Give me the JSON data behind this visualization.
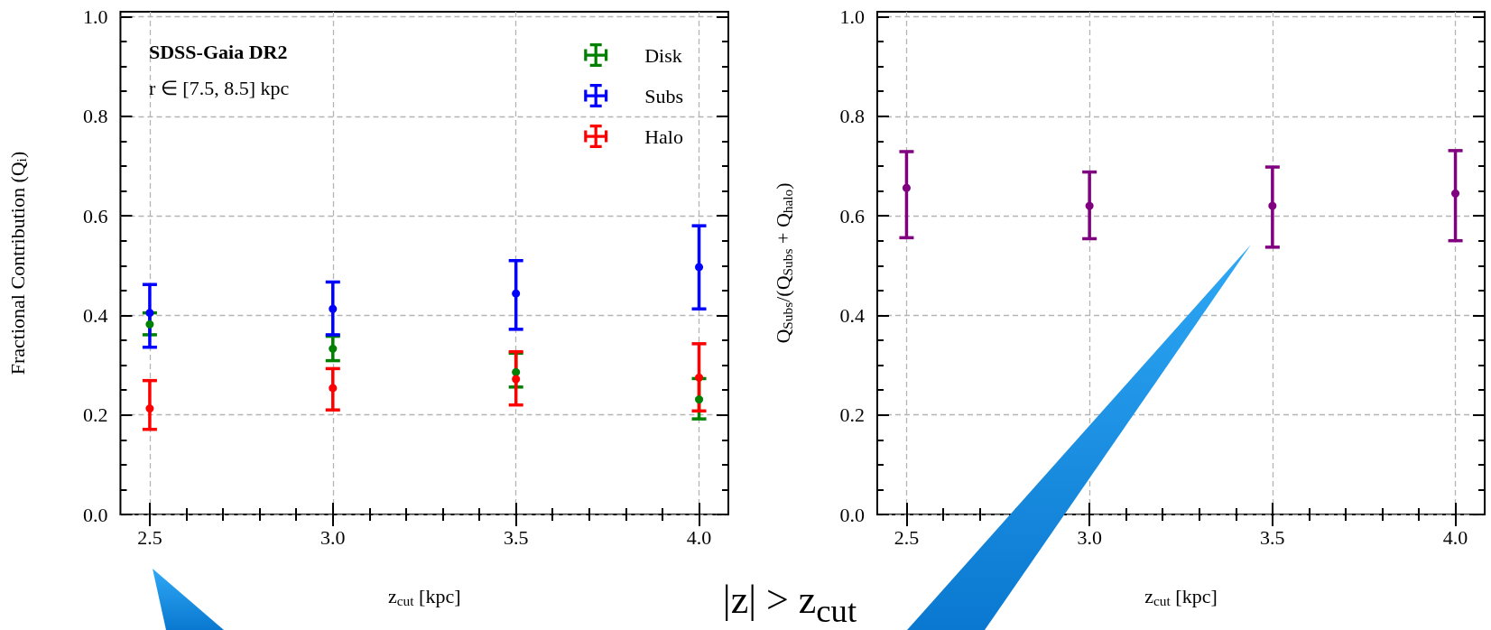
{
  "chart_data": [
    {
      "type": "scatter",
      "xlabel": "z$_{cut}$ [kpc]",
      "ylabel": "Fractional Contribution (Q$_{i}$)",
      "annotations": [
        "SDSS-Gaia DR2",
        "r ∈ [7.5, 8.5] kpc",
        "|z| > z$_{cut}$"
      ],
      "x": [
        2.5,
        3.0,
        3.5,
        4.0
      ],
      "xlim": [
        2.42,
        4.08
      ],
      "xticks": [
        {
          "value": 2.5,
          "label": "2.5"
        },
        {
          "value": 2.6,
          "label": null
        },
        {
          "value": 2.7,
          "label": null
        },
        {
          "value": 2.8,
          "label": null
        },
        {
          "value": 2.9,
          "label": null
        },
        {
          "value": 3.0,
          "label": "3.0"
        },
        {
          "value": 3.1,
          "label": null
        },
        {
          "value": 3.2,
          "label": null
        },
        {
          "value": 3.3,
          "label": null
        },
        {
          "value": 3.4,
          "label": null
        },
        {
          "value": 3.5,
          "label": "3.5"
        },
        {
          "value": 3.6,
          "label": null
        },
        {
          "value": 3.7,
          "label": null
        },
        {
          "value": 3.8,
          "label": null
        },
        {
          "value": 3.9,
          "label": null
        },
        {
          "value": 4.0,
          "label": "4.0"
        }
      ],
      "ylim": [
        0,
        1.01
      ],
      "yticks": [
        {
          "value": 0,
          "label": "0.0"
        },
        {
          "value": 0.05,
          "label": null
        },
        {
          "value": 0.1,
          "label": null
        },
        {
          "value": 0.15,
          "label": null
        },
        {
          "value": 0.2,
          "label": "0.2"
        },
        {
          "value": 0.25,
          "label": null
        },
        {
          "value": 0.3,
          "label": null
        },
        {
          "value": 0.35,
          "label": null
        },
        {
          "value": 0.4,
          "label": "0.4"
        },
        {
          "value": 0.45,
          "label": null
        },
        {
          "value": 0.5,
          "label": null
        },
        {
          "value": 0.55,
          "label": null
        },
        {
          "value": 0.6,
          "label": "0.6"
        },
        {
          "value": 0.65,
          "label": null
        },
        {
          "value": 0.7,
          "label": null
        },
        {
          "value": 0.75,
          "label": null
        },
        {
          "value": 0.8,
          "label": "0.8"
        },
        {
          "value": 0.85,
          "label": null
        },
        {
          "value": 0.9,
          "label": null
        },
        {
          "value": 0.95,
          "label": null
        },
        {
          "value": 1.0,
          "label": "1.0"
        }
      ],
      "grid": true,
      "legend": "top right",
      "marker": "circle",
      "series": [
        {
          "name": "Disk",
          "color": "#008000",
          "values": [
            0.382,
            0.333,
            0.286,
            0.231
          ],
          "errors": [
            [
              0.361,
              0.405
            ],
            [
              0.309,
              0.358
            ],
            [
              0.256,
              0.324
            ],
            [
              0.192,
              0.273
            ]
          ]
        },
        {
          "name": "Subs",
          "color": "#0000ff",
          "values": [
            0.405,
            0.413,
            0.444,
            0.497
          ],
          "errors": [
            [
              0.336,
              0.462
            ],
            [
              0.361,
              0.467
            ],
            [
              0.372,
              0.51
            ],
            [
              0.413,
              0.58
            ]
          ]
        },
        {
          "name": "Halo",
          "color": "#ff0000",
          "values": [
            0.213,
            0.254,
            0.272,
            0.275
          ],
          "errors": [
            [
              0.171,
              0.269
            ],
            [
              0.21,
              0.293
            ],
            [
              0.22,
              0.327
            ],
            [
              0.208,
              0.343
            ]
          ]
        }
      ]
    },
    {
      "type": "scatter",
      "xlabel": "z$_{cut}$ [kpc]",
      "ylabel": "Q$_{Subs}$/(Q$_{Subs}$ + Q$_{halo}$)",
      "x": [
        2.5,
        3.0,
        3.5,
        4.0
      ],
      "xlim": [
        2.42,
        4.08
      ],
      "xticks": [
        {
          "value": 2.5,
          "label": "2.5"
        },
        {
          "value": 2.6,
          "label": null
        },
        {
          "value": 2.7,
          "label": null
        },
        {
          "value": 2.8,
          "label": null
        },
        {
          "value": 2.9,
          "label": null
        },
        {
          "value": 3.0,
          "label": "3.0"
        },
        {
          "value": 3.1,
          "label": null
        },
        {
          "value": 3.2,
          "label": null
        },
        {
          "value": 3.3,
          "label": null
        },
        {
          "value": 3.4,
          "label": null
        },
        {
          "value": 3.5,
          "label": "3.5"
        },
        {
          "value": 3.6,
          "label": null
        },
        {
          "value": 3.7,
          "label": null
        },
        {
          "value": 3.8,
          "label": null
        },
        {
          "value": 3.9,
          "label": null
        },
        {
          "value": 4.0,
          "label": "4.0"
        }
      ],
      "ylim": [
        0,
        1.01
      ],
      "yticks": [
        {
          "value": 0,
          "label": "0.0"
        },
        {
          "value": 0.05,
          "label": null
        },
        {
          "value": 0.1,
          "label": null
        },
        {
          "value": 0.15,
          "label": null
        },
        {
          "value": 0.2,
          "label": "0.2"
        },
        {
          "value": 0.25,
          "label": null
        },
        {
          "value": 0.3,
          "label": null
        },
        {
          "value": 0.35,
          "label": null
        },
        {
          "value": 0.4,
          "label": "0.4"
        },
        {
          "value": 0.45,
          "label": null
        },
        {
          "value": 0.5,
          "label": null
        },
        {
          "value": 0.55,
          "label": null
        },
        {
          "value": 0.6,
          "label": "0.6"
        },
        {
          "value": 0.65,
          "label": null
        },
        {
          "value": 0.7,
          "label": null
        },
        {
          "value": 0.75,
          "label": null
        },
        {
          "value": 0.8,
          "label": "0.8"
        },
        {
          "value": 0.85,
          "label": null
        },
        {
          "value": 0.9,
          "label": null
        },
        {
          "value": 0.95,
          "label": null
        },
        {
          "value": 1.0,
          "label": "1.0"
        }
      ],
      "grid": true,
      "marker": "circle",
      "series": [
        {
          "color": "#800080",
          "values": [
            0.656,
            0.62,
            0.62,
            0.645
          ],
          "errors": [
            [
              0.556,
              0.729
            ],
            [
              0.554,
              0.688
            ],
            [
              0.537,
              0.698
            ],
            [
              0.55,
              0.731
            ]
          ]
        }
      ]
    }
  ]
}
